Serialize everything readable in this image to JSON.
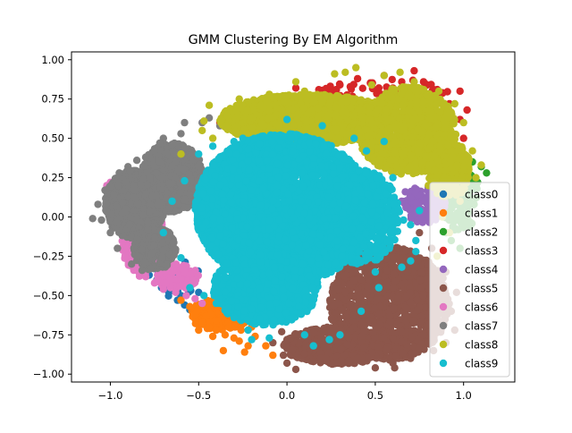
{
  "chart_data": {
    "type": "scatter",
    "title": "GMM Clustering By EM Algorithm",
    "xlabel": "",
    "ylabel": "",
    "xlim": [
      -1.22,
      1.29
    ],
    "ylim": [
      -1.05,
      1.05
    ],
    "xticks": [
      -1.0,
      -0.5,
      0.0,
      0.5,
      1.0
    ],
    "xtick_labels": [
      "−1.0",
      "−0.5",
      "0.0",
      "0.5",
      "1.0"
    ],
    "yticks": [
      -1.0,
      -0.75,
      -0.5,
      -0.25,
      0.0,
      0.25,
      0.5,
      0.75,
      1.0
    ],
    "ytick_labels": [
      "−1.00",
      "−0.75",
      "−0.50",
      "−0.25",
      "0.00",
      "0.25",
      "0.50",
      "0.75",
      "1.00"
    ],
    "grid": false,
    "legend_position": "lower-right",
    "marker_size_px": 4.2,
    "series": [
      {
        "name": "class0",
        "color": "#1f77b4",
        "regions": [
          {
            "cx": -0.62,
            "cy": -0.4,
            "rx": 0.14,
            "ry": 0.12,
            "n": 40
          }
        ],
        "points": [
          [
            -0.72,
            -0.39
          ],
          [
            -0.67,
            -0.44
          ],
          [
            -0.62,
            -0.53
          ],
          [
            -0.55,
            -0.59
          ],
          [
            -0.53,
            -0.6
          ],
          [
            -0.45,
            -0.6
          ],
          [
            -0.38,
            -0.7
          ],
          [
            -0.5,
            -0.48
          ],
          [
            -0.6,
            -0.5
          ],
          [
            -0.78,
            -0.37
          ],
          [
            -0.66,
            -0.47
          ],
          [
            -0.58,
            -0.56
          ]
        ]
      },
      {
        "name": "class1",
        "color": "#ff7f0e",
        "regions": [
          {
            "cx": -0.38,
            "cy": -0.62,
            "rx": 0.17,
            "ry": 0.1,
            "n": 200
          }
        ],
        "points": [
          [
            -0.55,
            -0.57
          ],
          [
            -0.52,
            -0.62
          ],
          [
            -0.48,
            -0.67
          ],
          [
            -0.44,
            -0.7
          ],
          [
            -0.4,
            -0.72
          ],
          [
            -0.35,
            -0.75
          ],
          [
            -0.3,
            -0.77
          ],
          [
            -0.27,
            -0.79
          ],
          [
            -0.22,
            -0.82
          ],
          [
            -0.36,
            -0.85
          ],
          [
            -0.24,
            -0.86
          ],
          [
            -0.08,
            -0.88
          ],
          [
            -0.12,
            -0.82
          ],
          [
            -0.18,
            -0.76
          ],
          [
            -0.6,
            -0.53
          ],
          [
            -0.46,
            -0.63
          ],
          [
            -0.4,
            -0.66
          ],
          [
            -0.33,
            -0.7
          ],
          [
            -0.3,
            -0.66
          ],
          [
            -0.26,
            -0.72
          ],
          [
            -0.42,
            -0.76
          ],
          [
            -0.5,
            -0.72
          ],
          [
            -0.2,
            -0.7
          ]
        ]
      },
      {
        "name": "class2",
        "color": "#2ca02c",
        "regions": [
          {
            "cx": 0.98,
            "cy": 0.12,
            "rx": 0.1,
            "ry": 0.22,
            "n": 140
          }
        ],
        "points": [
          [
            1.1,
            0.32
          ],
          [
            1.13,
            0.28
          ],
          [
            1.05,
            0.35
          ],
          [
            0.99,
            0.38
          ],
          [
            1.0,
            0.25
          ],
          [
            0.95,
            0.3
          ],
          [
            1.02,
            0.15
          ],
          [
            0.92,
            0.1
          ],
          [
            1.0,
            0.0
          ],
          [
            0.97,
            -0.08
          ],
          [
            1.04,
            -0.05
          ],
          [
            0.9,
            -0.1
          ],
          [
            0.85,
            0.05
          ],
          [
            0.95,
            0.2
          ],
          [
            1.08,
            0.22
          ],
          [
            0.88,
            0.2
          ],
          [
            0.93,
            -0.15
          ],
          [
            0.98,
            -0.2
          ],
          [
            1.06,
            0.08
          ],
          [
            0.9,
            0.36
          ]
        ]
      },
      {
        "name": "class3",
        "color": "#d62728",
        "regions": [
          {
            "cx": 0.55,
            "cy": 0.78,
            "rx": 0.38,
            "ry": 0.1,
            "n": 90
          }
        ],
        "points": [
          [
            0.72,
            0.93
          ],
          [
            0.78,
            0.85
          ],
          [
            0.88,
            0.79
          ],
          [
            0.98,
            0.8
          ],
          [
            1.02,
            0.68
          ],
          [
            -0.38,
            0.6
          ],
          [
            -0.31,
            0.64
          ],
          [
            -0.24,
            0.66
          ],
          [
            0.05,
            0.82
          ],
          [
            0.18,
            0.81
          ],
          [
            0.4,
            0.88
          ],
          [
            0.55,
            0.9
          ],
          [
            0.65,
            0.86
          ],
          [
            0.82,
            0.76
          ],
          [
            0.92,
            0.72
          ],
          [
            0.98,
            0.62
          ],
          [
            1.0,
            0.5
          ],
          [
            0.9,
            0.58
          ],
          [
            0.6,
            0.82
          ],
          [
            0.3,
            0.84
          ]
        ]
      },
      {
        "name": "class4",
        "color": "#9467bd",
        "regions": [
          {
            "cx": 0.78,
            "cy": 0.08,
            "rx": 0.12,
            "ry": 0.12,
            "n": 120
          }
        ],
        "points": [
          [
            0.67,
            0.16
          ],
          [
            0.7,
            0.12
          ],
          [
            0.73,
            0.09
          ],
          [
            0.76,
            0.05
          ],
          [
            0.8,
            0.0
          ],
          [
            0.72,
            0.02
          ],
          [
            0.68,
            0.06
          ],
          [
            0.65,
            0.1
          ],
          [
            0.84,
            0.12
          ],
          [
            0.8,
            0.18
          ]
        ]
      },
      {
        "name": "class5",
        "color": "#8c564b",
        "regions": [
          {
            "cx": 0.58,
            "cy": -0.55,
            "rx": 0.34,
            "ry": 0.36,
            "n": 1300
          },
          {
            "cx": 0.28,
            "cy": -0.82,
            "rx": 0.3,
            "ry": 0.12,
            "n": 450
          }
        ],
        "points": [
          [
            -0.03,
            -0.73
          ],
          [
            0.0,
            -0.78
          ],
          [
            -0.02,
            -0.88
          ],
          [
            0.0,
            -0.93
          ],
          [
            0.05,
            -0.97
          ],
          [
            0.15,
            -0.92
          ],
          [
            0.22,
            -0.9
          ],
          [
            0.28,
            -0.93
          ],
          [
            0.4,
            -0.9
          ],
          [
            0.5,
            -0.96
          ],
          [
            0.6,
            -0.93
          ],
          [
            0.7,
            -0.9
          ],
          [
            0.83,
            -0.85
          ],
          [
            0.9,
            -0.8
          ],
          [
            0.95,
            -0.72
          ],
          [
            0.93,
            -0.6
          ],
          [
            0.96,
            -0.48
          ],
          [
            0.9,
            -0.35
          ],
          [
            0.82,
            -0.2
          ],
          [
            0.75,
            -0.1
          ],
          [
            0.61,
            -0.96
          ],
          [
            0.1,
            -0.87
          ],
          [
            -0.08,
            -0.8
          ]
        ]
      },
      {
        "name": "class6",
        "color": "#e377c2",
        "regions": [
          {
            "cx": -0.82,
            "cy": -0.12,
            "rx": 0.12,
            "ry": 0.26,
            "n": 250
          },
          {
            "cx": -0.62,
            "cy": -0.38,
            "rx": 0.12,
            "ry": 0.08,
            "n": 90
          }
        ],
        "points": [
          [
            -1.02,
            0.2
          ],
          [
            -1.0,
            0.22
          ],
          [
            -0.97,
            0.24
          ],
          [
            -0.92,
            0.25
          ],
          [
            -0.87,
            0.26
          ],
          [
            -0.82,
            0.28
          ],
          [
            -0.96,
            0.15
          ],
          [
            -0.99,
            0.05
          ],
          [
            -0.97,
            -0.05
          ],
          [
            -0.94,
            -0.1
          ],
          [
            -0.91,
            -0.2
          ],
          [
            -0.86,
            -0.3
          ],
          [
            -0.84,
            -0.35
          ],
          [
            -0.8,
            -0.38
          ],
          [
            -0.75,
            -0.42
          ],
          [
            -0.7,
            -0.46
          ],
          [
            -0.63,
            -0.48
          ],
          [
            -0.57,
            -0.5
          ],
          [
            -0.52,
            -0.52
          ],
          [
            -0.48,
            -0.55
          ],
          [
            -0.9,
            0.0
          ],
          [
            -0.85,
            -0.25
          ],
          [
            -0.6,
            -0.44
          ],
          [
            -0.66,
            -0.4
          ]
        ]
      },
      {
        "name": "class7",
        "color": "#7f7f7f",
        "regions": [
          {
            "cx": -0.86,
            "cy": 0.08,
            "rx": 0.17,
            "ry": 0.22,
            "n": 900
          },
          {
            "cx": -0.65,
            "cy": 0.25,
            "rx": 0.18,
            "ry": 0.22,
            "n": 600
          },
          {
            "cx": -0.75,
            "cy": -0.2,
            "rx": 0.12,
            "ry": 0.14,
            "n": 250
          }
        ],
        "points": [
          [
            -1.1,
            -0.01
          ],
          [
            -1.07,
            0.08
          ],
          [
            -1.03,
            0.17
          ],
          [
            -0.95,
            0.28
          ],
          [
            -0.85,
            0.36
          ],
          [
            -0.75,
            0.42
          ],
          [
            -0.6,
            0.53
          ],
          [
            -0.58,
            0.6
          ],
          [
            -0.48,
            0.6
          ],
          [
            -0.44,
            0.63
          ],
          [
            -0.38,
            0.58
          ],
          [
            -0.7,
            0.5
          ],
          [
            -0.8,
            0.38
          ],
          [
            -0.9,
            0.32
          ],
          [
            -1.05,
            -0.02
          ],
          [
            -1.0,
            -0.1
          ],
          [
            -0.96,
            -0.2
          ],
          [
            -0.88,
            -0.3
          ],
          [
            -0.82,
            -0.34
          ],
          [
            -0.72,
            0.47
          ],
          [
            -0.65,
            0.46
          ]
        ]
      },
      {
        "name": "class8",
        "color": "#bcbd22",
        "regions": [
          {
            "cx": 0.12,
            "cy": 0.62,
            "rx": 0.5,
            "ry": 0.16,
            "n": 1800
          },
          {
            "cx": 0.68,
            "cy": 0.55,
            "rx": 0.28,
            "ry": 0.28,
            "n": 1100
          },
          {
            "cx": 0.92,
            "cy": 0.3,
            "rx": 0.12,
            "ry": 0.18,
            "n": 300
          }
        ],
        "points": [
          [
            -0.44,
            0.71
          ],
          [
            -0.27,
            0.75
          ],
          [
            0.05,
            0.86
          ],
          [
            0.27,
            0.91
          ],
          [
            0.33,
            0.92
          ],
          [
            0.39,
            0.95
          ],
          [
            0.55,
            0.9
          ],
          [
            0.64,
            0.92
          ],
          [
            0.72,
            0.86
          ],
          [
            0.86,
            0.8
          ],
          [
            0.95,
            0.72
          ],
          [
            1.0,
            0.6
          ],
          [
            1.05,
            0.42
          ],
          [
            1.1,
            0.33
          ],
          [
            1.07,
            0.25
          ],
          [
            1.0,
            0.19
          ],
          [
            0.98,
            0.1
          ],
          [
            -0.47,
            0.61
          ],
          [
            -0.42,
            0.5
          ],
          [
            -0.48,
            0.55
          ],
          [
            -0.6,
            0.4
          ],
          [
            0.8,
            0.2
          ],
          [
            0.85,
            0.15
          ],
          [
            0.88,
            0.0
          ],
          [
            0.92,
            -0.1
          ],
          [
            0.85,
            -0.25
          ],
          [
            0.1,
            0.8
          ],
          [
            -0.1,
            0.78
          ],
          [
            0.48,
            0.84
          ]
        ]
      },
      {
        "name": "class9",
        "color": "#17becf",
        "regions": [
          {
            "cx": -0.02,
            "cy": 0.05,
            "rx": 0.5,
            "ry": 0.48,
            "n": 4200
          },
          {
            "cx": -0.12,
            "cy": -0.45,
            "rx": 0.3,
            "ry": 0.24,
            "n": 900
          },
          {
            "cx": 0.42,
            "cy": 0.0,
            "rx": 0.22,
            "ry": 0.3,
            "n": 500
          }
        ],
        "points": [
          [
            -0.7,
            -0.1
          ],
          [
            -0.65,
            0.1
          ],
          [
            -0.6,
            -0.26
          ],
          [
            -0.58,
            0.23
          ],
          [
            -0.5,
            0.4
          ],
          [
            -0.42,
            0.45
          ],
          [
            -0.3,
            0.48
          ],
          [
            -0.25,
            0.5
          ],
          [
            0.0,
            0.62
          ],
          [
            0.2,
            0.58
          ],
          [
            0.38,
            0.5
          ],
          [
            0.45,
            0.42
          ],
          [
            0.55,
            0.48
          ],
          [
            0.6,
            0.25
          ],
          [
            0.63,
            0.05
          ],
          [
            0.66,
            -0.02
          ],
          [
            0.7,
            -0.05
          ],
          [
            0.73,
            -0.15
          ],
          [
            0.7,
            -0.28
          ],
          [
            0.65,
            -0.32
          ],
          [
            0.58,
            -0.2
          ],
          [
            0.5,
            -0.35
          ],
          [
            0.42,
            -0.6
          ],
          [
            0.3,
            -0.75
          ],
          [
            0.24,
            -0.78
          ],
          [
            0.1,
            -0.75
          ],
          [
            -0.1,
            -0.77
          ],
          [
            -0.2,
            -0.78
          ],
          [
            -0.22,
            -0.72
          ],
          [
            -0.3,
            -0.64
          ],
          [
            -0.4,
            -0.55
          ],
          [
            -0.47,
            -0.5
          ],
          [
            -0.55,
            -0.45
          ],
          [
            0.73,
            -0.22
          ],
          [
            0.75,
            0.04
          ],
          [
            0.52,
            -0.45
          ],
          [
            0.15,
            -0.82
          ]
        ]
      }
    ]
  }
}
